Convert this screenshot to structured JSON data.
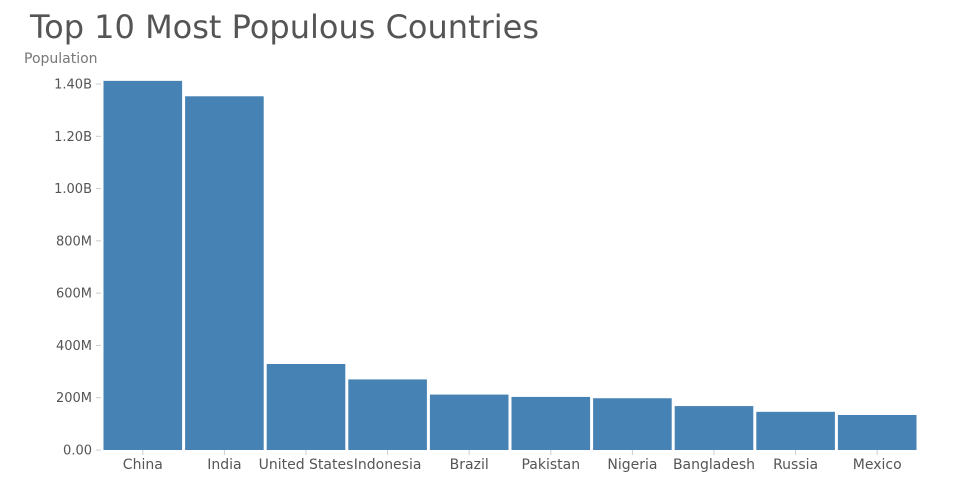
{
  "chart_data": {
    "type": "bar",
    "title": "Top 10 Most Populous Countries",
    "ylabel": "Population",
    "xlabel": "",
    "categories": [
      "China",
      "India",
      "United States",
      "Indonesia",
      "Brazil",
      "Pakistan",
      "Nigeria",
      "Bangladesh",
      "Russia",
      "Mexico"
    ],
    "values": [
      1412000000,
      1353000000,
      329000000,
      270000000,
      212000000,
      203000000,
      198000000,
      168000000,
      146000000,
      134000000
    ],
    "ylim": [
      0,
      1400000000
    ],
    "yticks": [
      0,
      200000000,
      400000000,
      600000000,
      800000000,
      1000000000,
      1200000000,
      1400000000
    ],
    "ytick_labels": [
      "0.00",
      "200M",
      "400M",
      "600M",
      "800M",
      "1.00B",
      "1.20B",
      "1.40B"
    ],
    "bar_color": "#4682b4",
    "grid": false,
    "legend": false
  }
}
